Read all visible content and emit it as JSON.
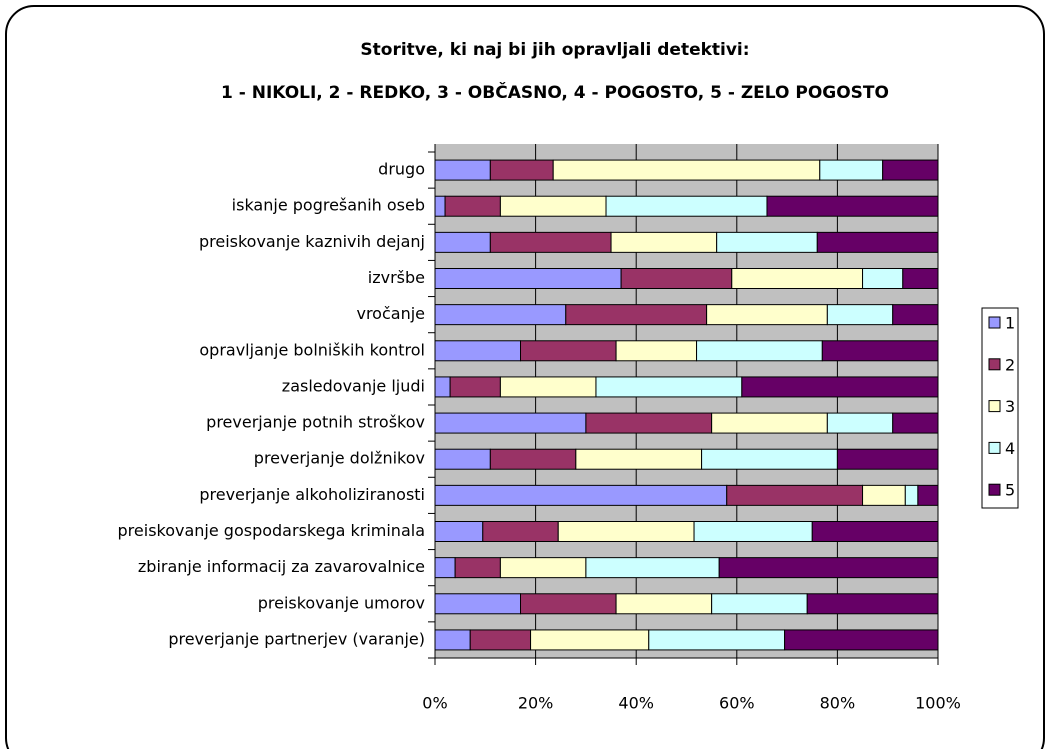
{
  "chart_data": {
    "type": "stacked_barh",
    "title": "Storitve, ki naj bi jih opravljali detektivi:",
    "subtitle": "1 - NIKOLI, 2 - REDKO, 3 - OBČASNO, 4 - POGOSTO, 5 - ZELO POGOSTO",
    "categories": [
      "drugo",
      "iskanje pogrešanih oseb",
      "preiskovanje kaznivih dejanj",
      "izvršbe",
      "vročanje",
      "opravljanje bolniških kontrol",
      "zasledovanje ljudi",
      "preverjanje potnih stroškov",
      "preverjanje dolžnikov",
      "preverjanje alkoholiziranosti",
      "preiskovanje gospodarskega kriminala",
      "zbiranje informacij za zavarovalnice",
      "preiskovanje umorov",
      "preverjanje partnerjev (varanje)"
    ],
    "series": [
      {
        "name": "1",
        "color": "#9999ff",
        "values": [
          11,
          2,
          11,
          37,
          26,
          17,
          3,
          30,
          11,
          58,
          9.5,
          4,
          17,
          7
        ]
      },
      {
        "name": "2",
        "color": "#993366",
        "values": [
          12.5,
          11,
          24,
          22,
          28,
          19,
          10,
          25,
          17,
          27,
          15,
          9,
          19,
          12
        ]
      },
      {
        "name": "3",
        "color": "#ffffcc",
        "values": [
          53,
          21,
          21,
          26,
          24,
          16,
          19,
          23,
          25,
          8.5,
          27,
          17,
          19,
          23.5
        ]
      },
      {
        "name": "4",
        "color": "#ccffff",
        "values": [
          12.5,
          32,
          20,
          8,
          13,
          25,
          29,
          13,
          27,
          2.5,
          23.5,
          26.5,
          19,
          27
        ]
      },
      {
        "name": "5",
        "color": "#660066",
        "values": [
          11,
          34,
          24,
          7,
          9,
          23,
          39,
          9,
          20,
          4,
          25,
          43.5,
          26,
          30.5
        ]
      }
    ],
    "xlim": [
      0,
      100
    ],
    "xticks": [
      {
        "value": 0,
        "label": "0%"
      },
      {
        "value": 20,
        "label": "20%"
      },
      {
        "value": 40,
        "label": "40%"
      },
      {
        "value": 60,
        "label": "60%"
      },
      {
        "value": 80,
        "label": "80%"
      },
      {
        "value": 100,
        "label": "100%"
      }
    ],
    "grid": true,
    "legend": "right"
  }
}
